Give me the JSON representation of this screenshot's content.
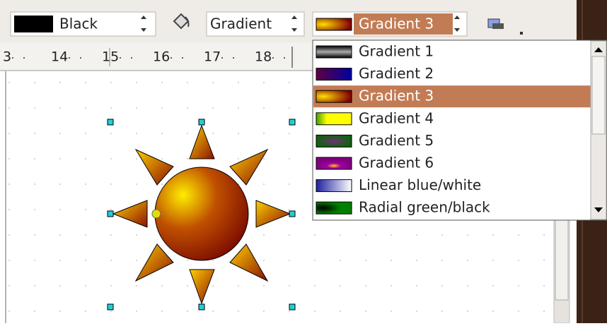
{
  "toolbar": {
    "line_color": "Black",
    "fill_style": "Gradient",
    "fill_value": "Gradient 3"
  },
  "ruler": {
    "labels": [
      "3",
      "14",
      "15",
      "16",
      "17",
      "18"
    ]
  },
  "dropdown": {
    "items": [
      "Gradient 1",
      "Gradient 2",
      "Gradient 3",
      "Gradient 4",
      "Gradient 5",
      "Gradient 6",
      "Linear blue/white",
      "Radial green/black"
    ],
    "selected_index": 2
  }
}
